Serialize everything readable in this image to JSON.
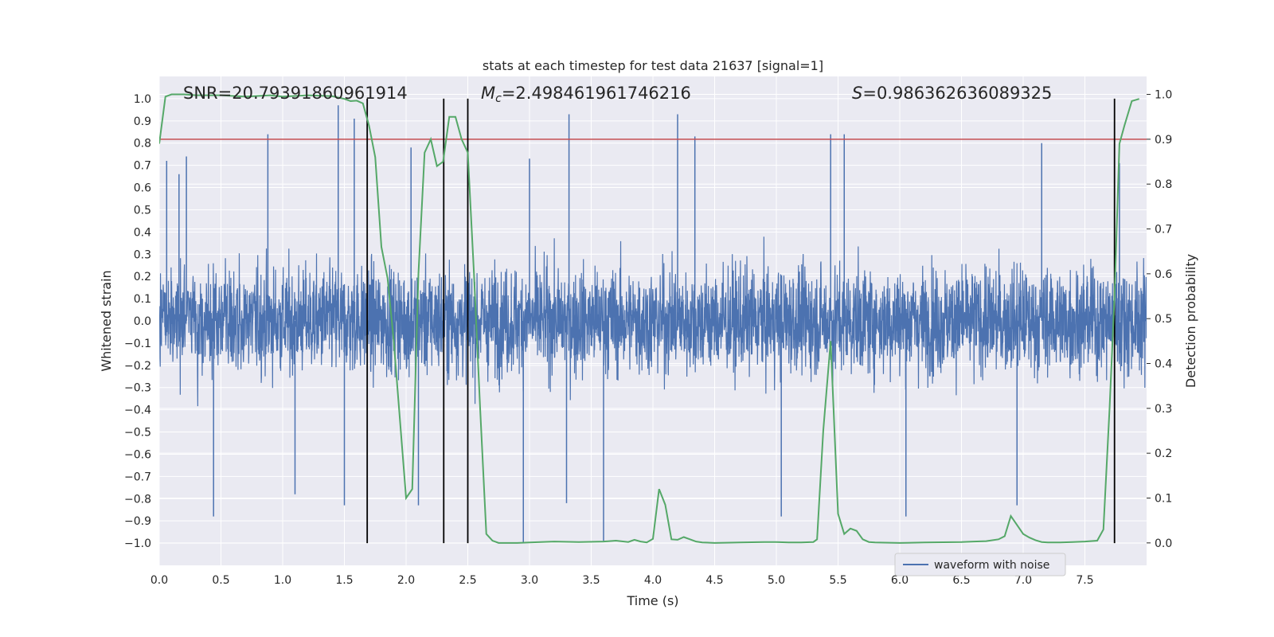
{
  "chart_data": {
    "type": "line",
    "title": "stats at each timestep for test data 21637 [signal=1]",
    "xlabel": "Time (s)",
    "ylabel": "Whitened strain",
    "y2label": "Detection probability",
    "xlim": [
      0,
      8
    ],
    "ylim": [
      -1.1,
      1.1
    ],
    "y2lim": [
      -0.05,
      1.04
    ],
    "x_ticks": [
      0.0,
      0.5,
      1.0,
      1.5,
      2.0,
      2.5,
      3.0,
      3.5,
      4.0,
      4.5,
      5.0,
      5.5,
      6.0,
      6.5,
      7.0,
      7.5
    ],
    "x_tick_labels": [
      "0.0",
      "0.5",
      "1.0",
      "1.5",
      "2.0",
      "2.5",
      "3.0",
      "3.5",
      "4.0",
      "4.5",
      "5.0",
      "5.5",
      "6.0",
      "6.5",
      "7.0",
      "7.5"
    ],
    "y_ticks": [
      -1.0,
      -0.9,
      -0.8,
      -0.7,
      -0.6,
      -0.5,
      -0.4,
      -0.3,
      -0.2,
      -0.1,
      0.0,
      0.1,
      0.2,
      0.3,
      0.4,
      0.5,
      0.6,
      0.7,
      0.8,
      0.9,
      1.0
    ],
    "y_tick_labels": [
      "−1.0",
      "−0.9",
      "−0.8",
      "−0.7",
      "−0.6",
      "−0.5",
      "−0.4",
      "−0.3",
      "−0.2",
      "−0.1",
      "0.0",
      "0.1",
      "0.2",
      "0.3",
      "0.4",
      "0.5",
      "0.6",
      "0.7",
      "0.8",
      "0.9",
      "1.0"
    ],
    "y2_ticks": [
      0.0,
      0.1,
      0.2,
      0.3,
      0.4,
      0.5,
      0.6,
      0.7,
      0.8,
      0.9,
      1.0
    ],
    "y2_tick_labels": [
      "0.0",
      "0.1",
      "0.2",
      "0.3",
      "0.4",
      "0.5",
      "0.6",
      "0.7",
      "0.8",
      "0.9",
      "1.0"
    ],
    "grid": true,
    "legend": {
      "placement": "lower-right",
      "entries": [
        "waveform with noise"
      ]
    },
    "annotations": {
      "snr": {
        "prefix": "SNR",
        "text": "=20.79391860961914"
      },
      "mc": {
        "symbol": "M",
        "subscript": "c",
        "text": "=2.498461961746216"
      },
      "s": {
        "symbol": "S",
        "text": "=0.986362636089325"
      }
    },
    "threshold": {
      "value": 0.9,
      "axis": "y2",
      "color": "#c44e52"
    },
    "vertical_lines": [
      1.685,
      2.305,
      2.5,
      7.74
    ],
    "series": [
      {
        "name": "waveform with noise",
        "axis": "y",
        "kind": "noise",
        "color": "#4c72b0",
        "typical_amplitude": 0.5,
        "n_samples": 4000,
        "spikes": [
          {
            "x": 0.06,
            "y": 0.72
          },
          {
            "x": 0.16,
            "y": 0.66
          },
          {
            "x": 0.22,
            "y": 0.74
          },
          {
            "x": 0.44,
            "y": -0.88
          },
          {
            "x": 0.88,
            "y": 0.84
          },
          {
            "x": 1.1,
            "y": -0.78
          },
          {
            "x": 1.45,
            "y": 0.97
          },
          {
            "x": 1.5,
            "y": -0.83
          },
          {
            "x": 1.58,
            "y": 0.91
          },
          {
            "x": 2.04,
            "y": 0.78
          },
          {
            "x": 2.1,
            "y": -0.83
          },
          {
            "x": 2.95,
            "y": -1.0
          },
          {
            "x": 3.0,
            "y": 0.73
          },
          {
            "x": 3.3,
            "y": -0.82
          },
          {
            "x": 3.32,
            "y": 0.93
          },
          {
            "x": 3.6,
            "y": -0.99
          },
          {
            "x": 4.2,
            "y": 0.93
          },
          {
            "x": 4.34,
            "y": 0.83
          },
          {
            "x": 5.04,
            "y": -0.88
          },
          {
            "x": 5.44,
            "y": 0.84
          },
          {
            "x": 5.55,
            "y": 0.84
          },
          {
            "x": 6.05,
            "y": -0.88
          },
          {
            "x": 6.95,
            "y": -0.83
          },
          {
            "x": 7.15,
            "y": 0.8
          },
          {
            "x": 7.78,
            "y": 0.71
          }
        ]
      },
      {
        "name": "detection probability",
        "axis": "y2",
        "color": "#55a868",
        "x": [
          0.0,
          0.05,
          0.1,
          0.2,
          0.3,
          0.5,
          0.7,
          0.9,
          1.0,
          1.2,
          1.4,
          1.5,
          1.55,
          1.6,
          1.65,
          1.7,
          1.75,
          1.8,
          1.85,
          1.9,
          2.0,
          2.05,
          2.1,
          2.15,
          2.2,
          2.25,
          2.3,
          2.35,
          2.4,
          2.45,
          2.5,
          2.55,
          2.6,
          2.65,
          2.7,
          2.75,
          2.8,
          2.9,
          3.0,
          3.2,
          3.4,
          3.6,
          3.7,
          3.8,
          3.85,
          3.9,
          3.95,
          4.0,
          4.05,
          4.1,
          4.15,
          4.2,
          4.25,
          4.3,
          4.35,
          4.4,
          4.5,
          4.7,
          4.9,
          5.0,
          5.1,
          5.2,
          5.3,
          5.33,
          5.38,
          5.44,
          5.5,
          5.55,
          5.6,
          5.65,
          5.7,
          5.75,
          5.8,
          6.0,
          6.2,
          6.5,
          6.6,
          6.7,
          6.8,
          6.85,
          6.9,
          6.95,
          7.0,
          7.05,
          7.1,
          7.15,
          7.2,
          7.3,
          7.4,
          7.5,
          7.6,
          7.65,
          7.7,
          7.74,
          7.78,
          7.82,
          7.88,
          7.94
        ],
        "values": [
          0.89,
          0.995,
          1.0,
          1.0,
          0.998,
          0.998,
          0.995,
          0.998,
          0.995,
          0.998,
          0.996,
          0.99,
          0.985,
          0.986,
          0.98,
          0.93,
          0.86,
          0.66,
          0.59,
          0.45,
          0.1,
          0.12,
          0.6,
          0.87,
          0.9,
          0.84,
          0.85,
          0.95,
          0.95,
          0.9,
          0.87,
          0.6,
          0.3,
          0.02,
          0.005,
          0.0,
          0.0,
          0.0,
          0.001,
          0.003,
          0.002,
          0.003,
          0.005,
          0.002,
          0.007,
          0.003,
          0.001,
          0.009,
          0.12,
          0.085,
          0.008,
          0.007,
          0.013,
          0.008,
          0.003,
          0.001,
          0.0,
          0.001,
          0.002,
          0.002,
          0.001,
          0.001,
          0.002,
          0.008,
          0.25,
          0.45,
          0.065,
          0.02,
          0.032,
          0.027,
          0.008,
          0.002,
          0.001,
          0.0,
          0.001,
          0.002,
          0.003,
          0.004,
          0.008,
          0.015,
          0.06,
          0.04,
          0.02,
          0.012,
          0.006,
          0.002,
          0.001,
          0.001,
          0.002,
          0.003,
          0.005,
          0.03,
          0.3,
          0.55,
          0.89,
          0.93,
          0.985,
          0.99
        ]
      }
    ]
  }
}
